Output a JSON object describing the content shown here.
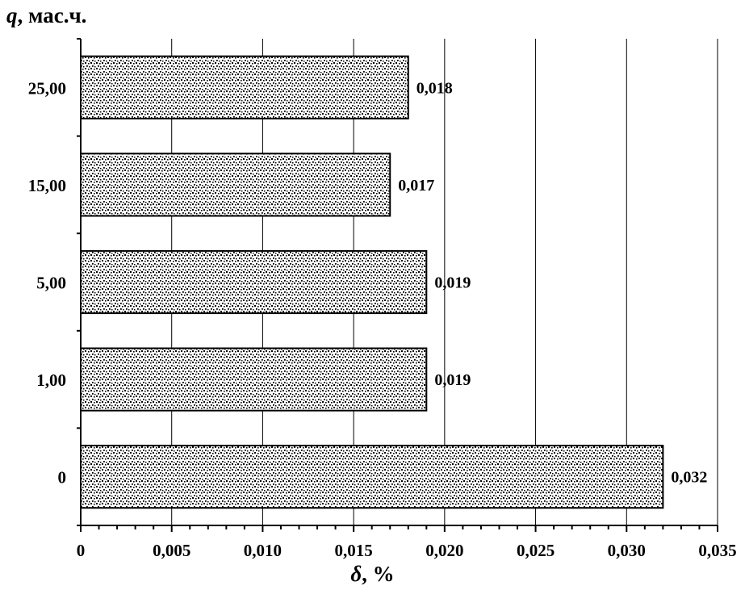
{
  "chart_data": {
    "type": "bar",
    "orientation": "horizontal",
    "categories": [
      "0",
      "1,00",
      "5,00",
      "15,00",
      "25,00"
    ],
    "values": [
      0.032,
      0.019,
      0.019,
      0.017,
      0.018
    ],
    "data_labels": [
      "0,032",
      "0,019",
      "0,019",
      "0,017",
      "0,018"
    ],
    "xlabel": {
      "symbol": "δ",
      "rest": ", %"
    },
    "ylabel": {
      "symbol": "q",
      "rest": ", мас.ч."
    },
    "xlim": [
      0,
      0.035
    ],
    "xticks": [
      0,
      0.005,
      0.01,
      0.015,
      0.02,
      0.025,
      0.03,
      0.035
    ],
    "xtick_labels": [
      "0",
      "0,005",
      "0,010",
      "0,015",
      "0,020",
      "0,025",
      "0,030",
      "0,035"
    ],
    "grid": "vertical major gridlines",
    "legend": "none",
    "bar_fill": "stippled black dots on white",
    "colors": {
      "bar_dots": "#000000",
      "bar_bg": "#ffffff",
      "grid": "#000000"
    }
  }
}
